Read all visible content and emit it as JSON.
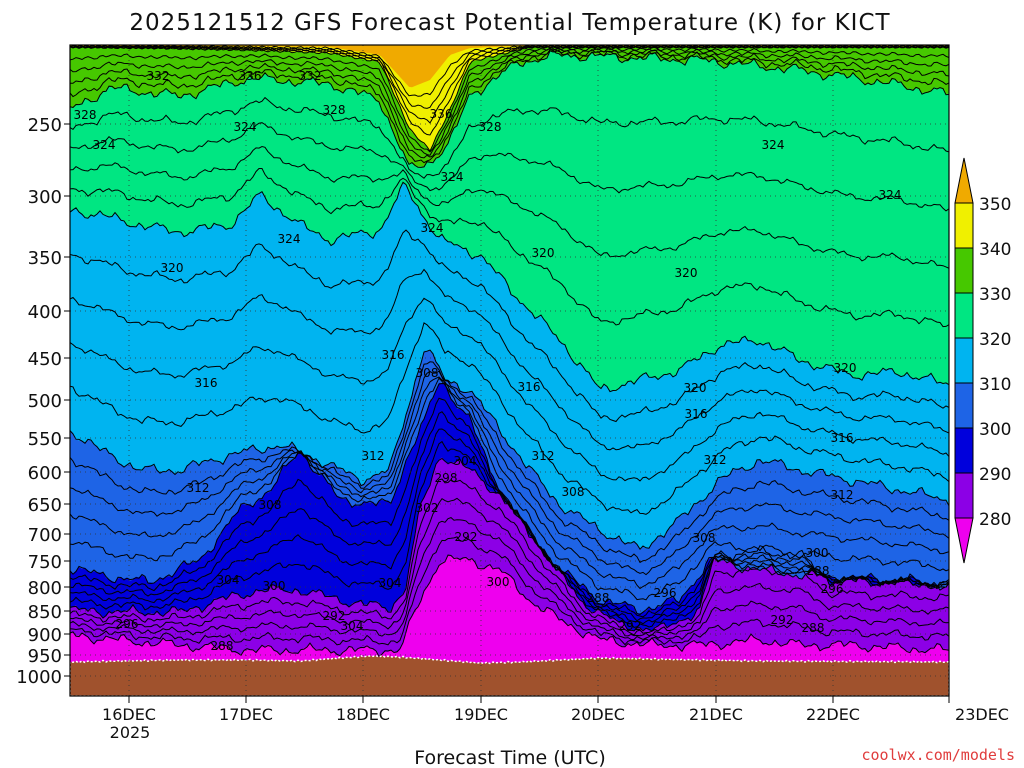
{
  "chart_data": {
    "type": "heatmap",
    "title": "2025121512 GFS Forecast Potential Temperature (K) for KICT",
    "xlabel": "Forecast Time (UTC)",
    "ylabel": "",
    "x_ticks": [
      "16DEC",
      "17DEC",
      "18DEC",
      "19DEC",
      "20DEC",
      "21DEC",
      "22DEC",
      "23DEC"
    ],
    "x_year": "2025",
    "y_ticks": [
      250,
      300,
      350,
      400,
      450,
      500,
      550,
      600,
      650,
      700,
      750,
      800,
      850,
      900,
      950,
      1000
    ],
    "ylim": [
      1000,
      200
    ],
    "y_scale": "log",
    "grid": true,
    "colorbar": {
      "levels": [
        280,
        290,
        300,
        310,
        320,
        330,
        340,
        350
      ],
      "colors": [
        "#ee00ee",
        "#8c00e6",
        "#0000dc",
        "#1e64e6",
        "#00b4f0",
        "#00e682",
        "#46c800",
        "#f0f000",
        "#f0aa00"
      ],
      "placement": "right"
    },
    "contour_labels": [
      "332",
      "336",
      "332",
      "328",
      "328",
      "336",
      "328",
      "324",
      "324",
      "324",
      "324",
      "324",
      "320",
      "320",
      "324",
      "324",
      "320",
      "316",
      "316",
      "308",
      "316",
      "320",
      "316",
      "320",
      "312",
      "312",
      "304",
      "312",
      "316",
      "312",
      "308",
      "298",
      "302",
      "308",
      "312",
      "308",
      "292",
      "304",
      "300",
      "304",
      "300",
      "288",
      "300",
      "288",
      "296",
      "292",
      "304",
      "296",
      "292",
      "288",
      "296",
      "292",
      "288"
    ],
    "ground_color": "#a0522d",
    "credit": "coolwx.com/models"
  }
}
